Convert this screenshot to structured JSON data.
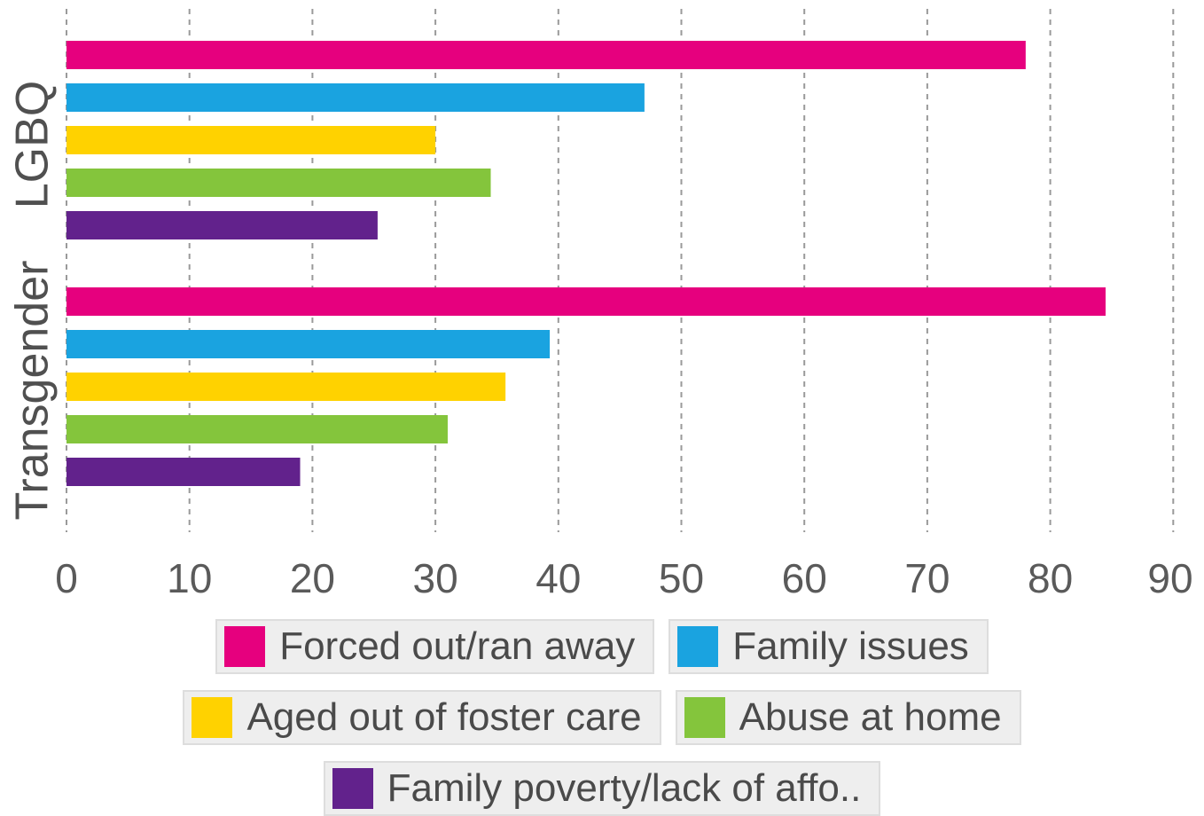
{
  "chart_data": {
    "type": "bar",
    "orientation": "horizontal",
    "groups": [
      "LGBQ",
      "Transgender"
    ],
    "series": [
      {
        "name": "Forced out/ran away",
        "color": "#e6007e",
        "values": [
          78,
          84.5
        ]
      },
      {
        "name": "Family issues",
        "color": "#1aa3e0",
        "values": [
          47,
          39.3
        ]
      },
      {
        "name": "Aged out of foster care",
        "color": "#ffd200",
        "values": [
          30,
          35.7
        ]
      },
      {
        "name": "Abuse at home",
        "color": "#84c53c",
        "values": [
          34.5,
          31
        ]
      },
      {
        "name": "Family poverty/lack of affo..",
        "color": "#62228c",
        "values": [
          25.3,
          19
        ]
      }
    ],
    "x_ticks": [
      "0",
      "10",
      "20",
      "30",
      "40",
      "50",
      "60",
      "70",
      "80",
      "90"
    ],
    "xlim": [
      0,
      90
    ],
    "grid": "vertical dashed",
    "legend_position": "bottom"
  }
}
